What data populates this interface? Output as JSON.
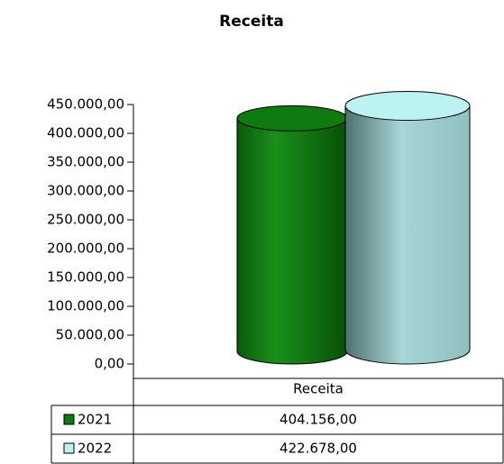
{
  "chart_data": {
    "type": "bar",
    "title": "Receita",
    "categories": [
      "Receita"
    ],
    "series": [
      {
        "name": "2021",
        "color": "#0f7a0f",
        "values": [
          404156
        ],
        "value_labels": [
          "404.156,00"
        ]
      },
      {
        "name": "2022",
        "color": "#bdf2f2",
        "values": [
          422678
        ],
        "value_labels": [
          "422.678,00"
        ]
      }
    ],
    "ylim": [
      0,
      450000
    ],
    "yticks": [
      {
        "value": 0,
        "label": "0,00"
      },
      {
        "value": 50000,
        "label": "50.000,00"
      },
      {
        "value": 100000,
        "label": "100.000,00"
      },
      {
        "value": 150000,
        "label": "150.000,00"
      },
      {
        "value": 200000,
        "label": "200.000,00"
      },
      {
        "value": 250000,
        "label": "250.000,00"
      },
      {
        "value": 300000,
        "label": "300.000,00"
      },
      {
        "value": 350000,
        "label": "350.000,00"
      },
      {
        "value": 400000,
        "label": "400.000,00"
      },
      {
        "value": 450000,
        "label": "450.000,00"
      }
    ]
  }
}
